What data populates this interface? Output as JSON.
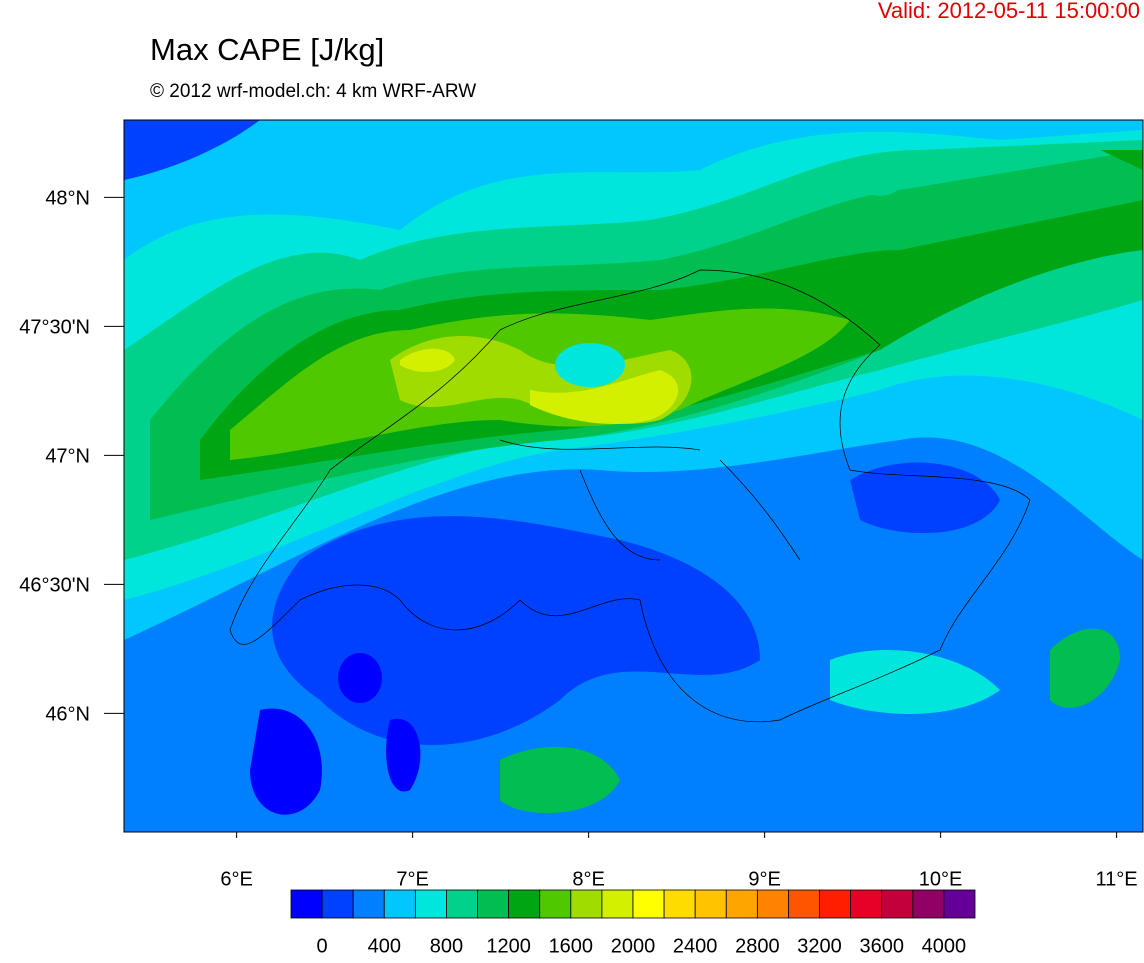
{
  "valid": "Valid: 2012-05-11 15:00:00",
  "title": "Max CAPE [J/kg]",
  "subtitle": "© 2012 wrf-model.ch: 4 km WRF-ARW",
  "map": {
    "xlim": [
      5.36,
      11.15
    ],
    "ylim": [
      45.54,
      48.3
    ],
    "xticks": [
      {
        "value": 6,
        "label": "6°E"
      },
      {
        "value": 7,
        "label": "7°E"
      },
      {
        "value": 8,
        "label": "8°E"
      },
      {
        "value": 9,
        "label": "9°E"
      },
      {
        "value": 10,
        "label": "10°E"
      },
      {
        "value": 11,
        "label": "11°E"
      }
    ],
    "yticks": [
      {
        "value": 48,
        "label": "48°N"
      },
      {
        "value": 47.5,
        "label": "47°30'N"
      },
      {
        "value": 47,
        "label": "47°N"
      },
      {
        "value": 46.5,
        "label": "46°30'N"
      },
      {
        "value": 46,
        "label": "46°N"
      }
    ]
  },
  "colorbar": {
    "labels": [
      0,
      400,
      800,
      1200,
      1600,
      2000,
      2400,
      2800,
      3200,
      3600,
      4000
    ],
    "colors": [
      "#0000ff",
      "#0040ff",
      "#0080ff",
      "#00c8ff",
      "#00e6dc",
      "#00d28c",
      "#00be50",
      "#00a514",
      "#50c800",
      "#a0dc00",
      "#d2f000",
      "#ffff00",
      "#ffdc00",
      "#ffc300",
      "#ffa500",
      "#ff8200",
      "#ff5500",
      "#ff1e00",
      "#e60028",
      "#c3003c",
      "#910064",
      "#640096"
    ]
  }
}
